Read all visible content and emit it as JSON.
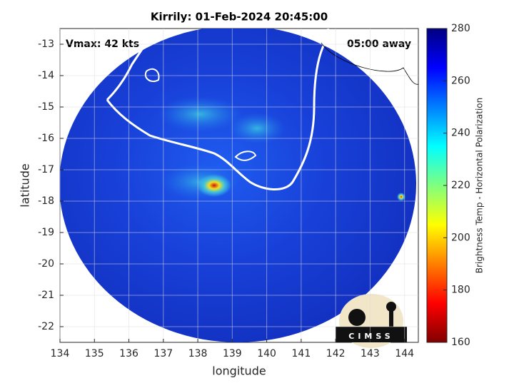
{
  "chart_data": {
    "type": "map",
    "title": "Kirrily: 01-Feb-2024 20:45:00",
    "annotations": [
      "Vmax: 42 kts",
      "05:00 away"
    ],
    "xlabel": "longitude",
    "ylabel": "latitude",
    "xlim": [
      134,
      144.4
    ],
    "xticks": [
      134,
      135,
      136,
      137,
      138,
      139,
      140,
      141,
      142,
      143,
      144
    ],
    "ylim": [
      -22.5,
      -12.5
    ],
    "yticks": [
      -13,
      -14,
      -15,
      -16,
      -17,
      -18,
      -19,
      -20,
      -21,
      -22
    ],
    "grid": true,
    "colorbar": {
      "label": "Brightness Temp - Horizontal Polarization",
      "clim": [
        160,
        280
      ],
      "ticks": [
        160,
        180,
        200,
        220,
        240,
        260,
        280
      ]
    },
    "logo_text": "CIMSS"
  }
}
